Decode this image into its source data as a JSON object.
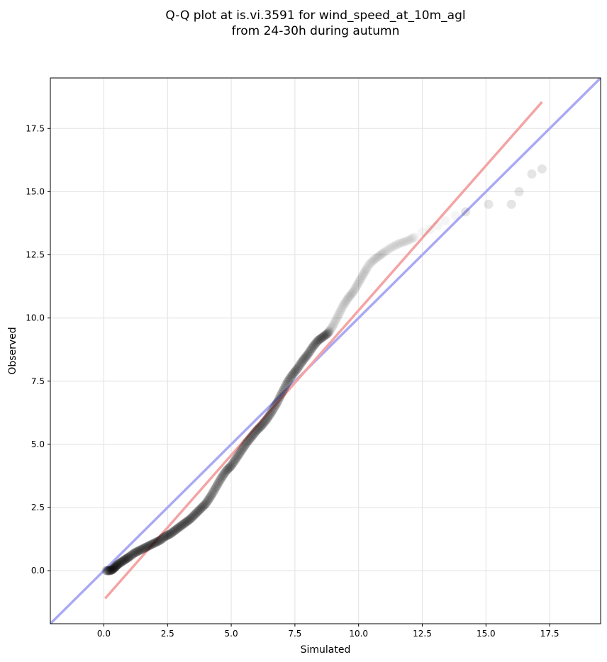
{
  "chart_data": {
    "type": "scatter",
    "title_line1": "Q-Q plot at is.vi.3591 for wind_speed_at_10m_agl",
    "title_line2": "from 24-30h during autumn",
    "xlabel": "Simulated",
    "ylabel": "Observed",
    "xlim": [
      -2.1,
      19.5
    ],
    "ylim": [
      -2.1,
      19.5
    ],
    "xticks": [
      0.0,
      2.5,
      5.0,
      7.5,
      10.0,
      12.5,
      15.0,
      17.5
    ],
    "yticks": [
      0.0,
      2.5,
      5.0,
      7.5,
      10.0,
      12.5,
      15.0,
      17.5
    ],
    "tick_labels": [
      "0.0",
      "2.5",
      "5.0",
      "7.5",
      "10.0",
      "12.5",
      "15.0",
      "17.5"
    ],
    "grid": true,
    "identity_line": {
      "color": "#a9a9f4",
      "x": [
        -2.1,
        19.5
      ],
      "y": [
        -2.1,
        19.5
      ]
    },
    "fit_line": {
      "color": "#f4a4a4",
      "x": [
        0.05,
        17.2
      ],
      "y": [
        -1.1,
        18.55
      ]
    },
    "point_color": "#000000",
    "quantiles": [
      [
        0.1,
        0.0
      ],
      [
        0.25,
        0.0
      ],
      [
        0.35,
        0.05
      ],
      [
        0.45,
        0.15
      ],
      [
        0.55,
        0.25
      ],
      [
        0.7,
        0.35
      ],
      [
        0.85,
        0.45
      ],
      [
        1.0,
        0.55
      ],
      [
        1.2,
        0.7
      ],
      [
        1.4,
        0.8
      ],
      [
        1.6,
        0.9
      ],
      [
        1.8,
        1.0
      ],
      [
        2.0,
        1.1
      ],
      [
        2.2,
        1.2
      ],
      [
        2.4,
        1.35
      ],
      [
        2.6,
        1.45
      ],
      [
        2.8,
        1.6
      ],
      [
        3.0,
        1.75
      ],
      [
        3.2,
        1.9
      ],
      [
        3.4,
        2.05
      ],
      [
        3.6,
        2.25
      ],
      [
        3.8,
        2.45
      ],
      [
        4.0,
        2.65
      ],
      [
        4.2,
        2.95
      ],
      [
        4.4,
        3.3
      ],
      [
        4.6,
        3.65
      ],
      [
        4.8,
        3.95
      ],
      [
        5.0,
        4.15
      ],
      [
        5.2,
        4.45
      ],
      [
        5.4,
        4.75
      ],
      [
        5.6,
        5.05
      ],
      [
        5.8,
        5.3
      ],
      [
        6.0,
        5.55
      ],
      [
        6.2,
        5.75
      ],
      [
        6.4,
        6.0
      ],
      [
        6.6,
        6.3
      ],
      [
        6.8,
        6.65
      ],
      [
        7.0,
        7.05
      ],
      [
        7.2,
        7.45
      ],
      [
        7.4,
        7.75
      ],
      [
        7.6,
        8.0
      ],
      [
        7.8,
        8.3
      ],
      [
        8.0,
        8.55
      ],
      [
        8.2,
        8.85
      ],
      [
        8.4,
        9.1
      ],
      [
        8.6,
        9.25
      ],
      [
        8.8,
        9.4
      ],
      [
        9.0,
        9.7
      ],
      [
        9.2,
        10.1
      ],
      [
        9.4,
        10.5
      ],
      [
        9.6,
        10.8
      ],
      [
        9.8,
        11.05
      ],
      [
        10.0,
        11.4
      ],
      [
        10.2,
        11.75
      ],
      [
        10.4,
        12.1
      ],
      [
        10.6,
        12.3
      ],
      [
        10.8,
        12.45
      ],
      [
        11.0,
        12.6
      ],
      [
        11.3,
        12.8
      ],
      [
        11.6,
        12.95
      ],
      [
        11.9,
        13.05
      ],
      [
        12.2,
        13.2
      ],
      [
        12.5,
        13.4
      ],
      [
        12.8,
        13.5
      ],
      [
        13.1,
        13.65
      ],
      [
        13.4,
        13.85
      ],
      [
        13.8,
        14.05
      ],
      [
        14.2,
        14.2
      ],
      [
        15.1,
        14.5
      ],
      [
        16.0,
        14.5
      ],
      [
        16.3,
        15.0
      ],
      [
        16.8,
        15.7
      ],
      [
        17.2,
        15.9
      ]
    ]
  }
}
